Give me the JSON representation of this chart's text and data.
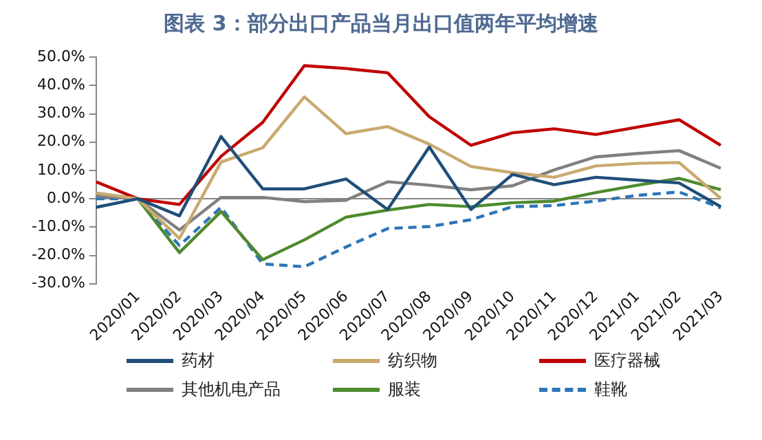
{
  "chart_data": {
    "type": "line",
    "title": "图表 3：部分出口产品当月出口值两年平均增速",
    "categories": [
      null,
      "2020/01",
      "2020/02",
      "2020/03",
      "2020/04",
      "2020/05",
      "2020/06",
      "2020/07",
      "2020/08",
      "2020/09",
      "2020/10",
      "2020/11",
      "2020/12",
      "2021/01",
      "2021/02",
      "2021/03"
    ],
    "series": [
      {
        "name": "药材",
        "color": "#1f4e79",
        "values": [
          -3,
          0,
          -6,
          22,
          3.5,
          3.5,
          7,
          -3.8,
          18.3,
          -3.8,
          8.6,
          5,
          7.6,
          6.6,
          5.6,
          -2.8
        ]
      },
      {
        "name": "纺织物",
        "color": "#c9a96e",
        "values": [
          2,
          0,
          -14,
          13,
          18,
          36,
          23,
          25.5,
          19.3,
          11.4,
          9.2,
          7.6,
          11.6,
          12.5,
          12.8,
          0.2
        ]
      },
      {
        "name": "医疗器械",
        "color": "#c00000",
        "values": [
          6,
          0,
          -2,
          15,
          27,
          47,
          46,
          44.5,
          29,
          18.9,
          23.3,
          24.7,
          22.7,
          25.3,
          27.9,
          18.9
        ]
      },
      {
        "name": "其他机电产品",
        "color": "#808080",
        "values": [
          1,
          0,
          -11,
          0.5,
          0.5,
          -1,
          -0.5,
          6,
          4.8,
          3.2,
          4.6,
          10.2,
          14.8,
          16,
          17,
          10.8
        ]
      },
      {
        "name": "服装",
        "color": "#4e8a2e",
        "values": [
          2,
          0,
          -19,
          -4.5,
          -21.5,
          -14.5,
          -6.5,
          -4,
          -2,
          -2.8,
          -1.4,
          -0.8,
          2.2,
          4.8,
          7.2,
          3.2
        ]
      },
      {
        "name": "鞋靴",
        "color": "#2e75b6",
        "line_style": "dashed",
        "values": [
          0,
          0,
          -16.5,
          -3,
          -23,
          -24,
          -17,
          -10.5,
          -9.8,
          -7.4,
          -2.8,
          -2.4,
          -0.8,
          1.2,
          2.4,
          -3.2
        ]
      }
    ],
    "ylim": [
      -30,
      50
    ],
    "yticks": [
      {
        "value": -30,
        "label": "-30.0%"
      },
      {
        "value": -20,
        "label": "-20.0%"
      },
      {
        "value": -10,
        "label": "-10.0%"
      },
      {
        "value": 0,
        "label": "0.0%"
      },
      {
        "value": 10,
        "label": "10.0%"
      },
      {
        "value": 20,
        "label": "20.0%"
      },
      {
        "value": 30,
        "label": "30.0%"
      },
      {
        "value": 40,
        "label": "40.0%"
      },
      {
        "value": 50,
        "label": "50.0%"
      }
    ],
    "legend": "bottom",
    "marker": "none",
    "line_style": "solid"
  }
}
